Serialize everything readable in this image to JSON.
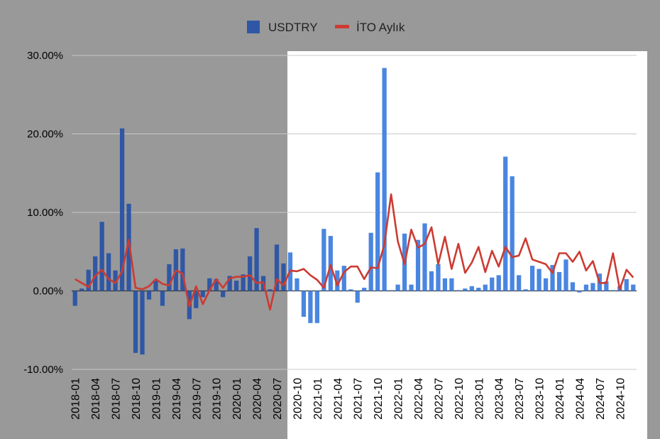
{
  "chart_data": {
    "type": "bar+line",
    "categories": [
      "2018-01",
      "2018-02",
      "2018-03",
      "2018-04",
      "2018-05",
      "2018-06",
      "2018-07",
      "2018-08",
      "2018-09",
      "2018-10",
      "2018-11",
      "2018-12",
      "2019-01",
      "2019-02",
      "2019-03",
      "2019-04",
      "2019-05",
      "2019-06",
      "2019-07",
      "2019-08",
      "2019-09",
      "2019-10",
      "2019-11",
      "2019-12",
      "2020-01",
      "2020-02",
      "2020-03",
      "2020-04",
      "2020-05",
      "2020-06",
      "2020-07",
      "2020-08",
      "2020-09",
      "2020-10",
      "2020-11",
      "2020-12",
      "2021-01",
      "2021-02",
      "2021-03",
      "2021-04",
      "2021-05",
      "2021-06",
      "2021-07",
      "2021-08",
      "2021-09",
      "2021-10",
      "2021-11",
      "2021-12",
      "2022-01",
      "2022-02",
      "2022-03",
      "2022-04",
      "2022-05",
      "2022-06",
      "2022-07",
      "2022-08",
      "2022-09",
      "2022-10",
      "2022-11",
      "2022-12",
      "2023-01",
      "2023-02",
      "2023-03",
      "2023-04",
      "2023-05",
      "2023-06",
      "2023-07",
      "2023-08",
      "2023-09",
      "2023-10",
      "2023-11",
      "2023-12",
      "2024-01",
      "2024-02",
      "2024-03",
      "2024-04",
      "2024-05",
      "2024-06",
      "2024-07",
      "2024-08",
      "2024-09",
      "2024-10",
      "2024-11",
      "2024-12"
    ],
    "tick_labels": [
      "2018-01",
      "2018-04",
      "2018-07",
      "2018-10",
      "2019-01",
      "2019-04",
      "2019-07",
      "2019-10",
      "2020-01",
      "2020-04",
      "2020-07",
      "2020-10",
      "2021-01",
      "2021-04",
      "2021-07",
      "2021-10",
      "2022-01",
      "2022-04",
      "2022-07",
      "2022-10",
      "2023-01",
      "2023-04",
      "2023-07",
      "2023-10",
      "2024-01",
      "2024-04",
      "2024-07",
      "2024-10"
    ],
    "series": [
      {
        "name": "USDTRY",
        "kind": "bar",
        "values": [
          -1.9,
          0.3,
          2.7,
          4.4,
          8.8,
          4.8,
          2.6,
          20.7,
          11.1,
          -7.9,
          -8.1,
          -1.1,
          1.3,
          -1.9,
          3.4,
          5.3,
          5.4,
          -3.6,
          -2.2,
          -0.8,
          1.6,
          1.5,
          -0.8,
          1.9,
          1.3,
          2.1,
          4.4,
          8.0,
          1.9,
          0.2,
          5.9,
          3.5,
          4.9,
          1.6,
          -3.3,
          -4.1,
          -4.1,
          7.9,
          7.0,
          2.6,
          3.2,
          0.2,
          -1.5,
          0.4,
          7.4,
          15.1,
          28.4,
          0.1,
          0.8,
          7.3,
          0.8,
          6.5,
          8.6,
          2.5,
          3.4,
          1.6,
          1.6,
          0.1,
          0.3,
          0.6,
          0.4,
          0.8,
          1.7,
          2.0,
          17.1,
          14.6,
          2.0,
          0.2,
          3.2,
          2.8,
          1.6,
          3.3,
          2.4,
          4.0,
          1.1,
          -0.2,
          0.8,
          1.0,
          2.2,
          1.2,
          0.1,
          0.6,
          1.5,
          0.8
        ],
        "color_dark": "#2f57a5",
        "color_light": "#4a86e0"
      },
      {
        "name": "İTO Aylık",
        "kind": "line",
        "values": [
          1.5,
          1.0,
          0.5,
          1.9,
          2.7,
          1.5,
          1.0,
          2.5,
          6.5,
          0.4,
          0.2,
          0.6,
          1.5,
          0.9,
          0.7,
          2.6,
          2.2,
          -2.0,
          0.6,
          -1.7,
          0.1,
          1.5,
          0.4,
          1.6,
          1.8,
          1.8,
          2.0,
          1.0,
          1.1,
          -2.4,
          1.5,
          0.7,
          2.6,
          2.5,
          2.8,
          2.0,
          1.4,
          0.4,
          3.3,
          0.7,
          2.4,
          3.1,
          3.1,
          1.5,
          3.0,
          2.9,
          5.9,
          12.3,
          6.3,
          3.4,
          7.8,
          5.5,
          6.0,
          8.1,
          3.4,
          6.9,
          2.8,
          6.0,
          2.3,
          3.6,
          5.6,
          2.4,
          5.1,
          3.1,
          5.6,
          4.3,
          4.5,
          6.7,
          4.0,
          3.7,
          3.4,
          2.3,
          4.8,
          4.8,
          3.7,
          5.0,
          2.6,
          3.8,
          1.0,
          1.0,
          4.8,
          0.2,
          2.7,
          1.7
        ],
        "color": "#cc3b32"
      }
    ],
    "y_ticks": [
      "30.00%",
      "20.00%",
      "10.00%",
      "0.00%",
      "-10.00%"
    ],
    "y_tick_values": [
      30,
      20,
      10,
      0,
      -10
    ],
    "ylim": [
      -10,
      30
    ],
    "y_unit": "%",
    "grid": true,
    "legend_position": "top-center",
    "highlight_from": "2020-09",
    "colors": {
      "background": "#999999",
      "highlight_panel": "#ffffff",
      "gridline": "#c8c8c8",
      "zero_line": "#333333"
    }
  }
}
